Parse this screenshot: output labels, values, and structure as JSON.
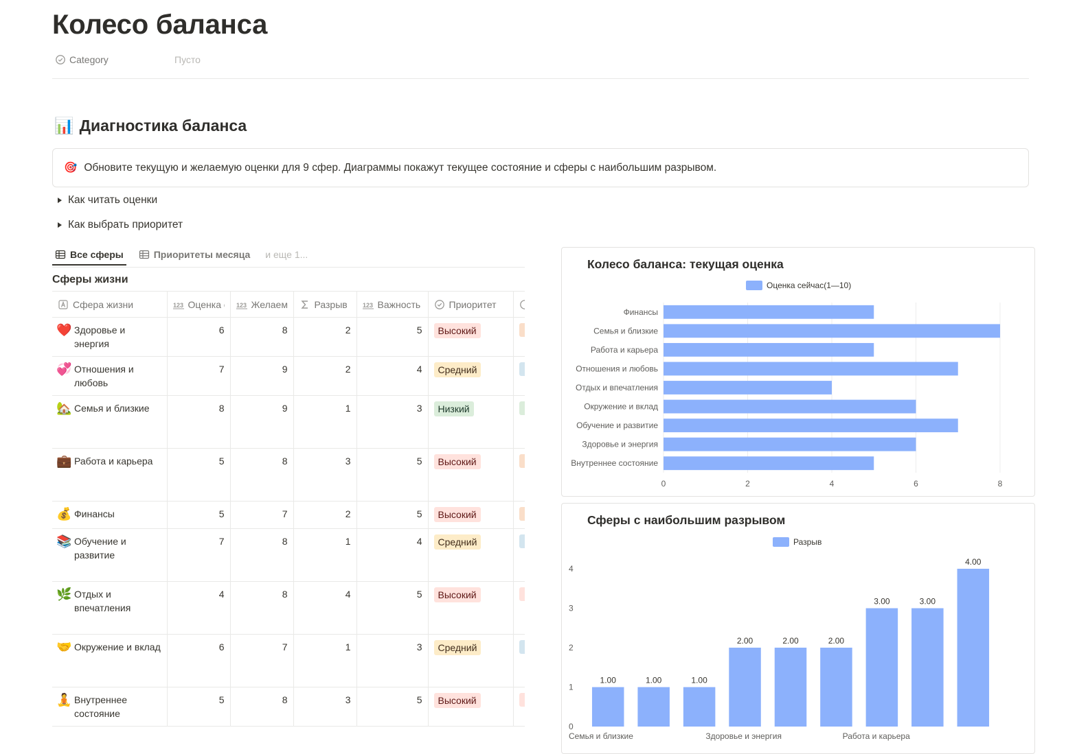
{
  "page": {
    "title": "Колесо баланса"
  },
  "property": {
    "name": "Category",
    "value": "Пусто"
  },
  "section": {
    "emoji": "📊",
    "heading": "Диагностика баланса"
  },
  "callout": {
    "emoji": "🎯",
    "text": "Обновите текущую и желаемую оценки для 9 сфер. Диаграммы покажут текущее состояние и сферы с наибольшим разрывом."
  },
  "toggles": [
    "Как читать оценки",
    "Как выбрать приоритет"
  ],
  "views": {
    "tabs": [
      "Все сферы",
      "Приоритеты месяца"
    ],
    "more": "и еще 1..."
  },
  "database": {
    "title": "Сферы жизни",
    "columns": [
      "Сфера жизни",
      "Оценка сейчас",
      "Желаемая",
      "Разрыв",
      "Важность",
      "Приоритет"
    ],
    "rows": [
      {
        "emoji": "❤️",
        "name": "Здоровье и энергия",
        "current": "6",
        "desired": "8",
        "gap": "2",
        "importance": "5",
        "priority": "Высокий",
        "level": "high",
        "stub": "#fadec9"
      },
      {
        "emoji": "💞",
        "name": "Отношения и любовь",
        "current": "7",
        "desired": "9",
        "gap": "2",
        "importance": "4",
        "priority": "Средний",
        "level": "mid",
        "stub": "#d3e5ef"
      },
      {
        "emoji": "🏡",
        "name": "Семья и близкие",
        "current": "8",
        "desired": "9",
        "gap": "1",
        "importance": "3",
        "priority": "Низкий",
        "level": "low",
        "stub": "#dbeddb"
      },
      {
        "emoji": "💼",
        "name": "Работа и карьера",
        "current": "5",
        "desired": "8",
        "gap": "3",
        "importance": "5",
        "priority": "Высокий",
        "level": "high",
        "stub": "#fadec9"
      },
      {
        "emoji": "💰",
        "name": "Финансы",
        "current": "5",
        "desired": "7",
        "gap": "2",
        "importance": "5",
        "priority": "Высокий",
        "level": "high",
        "stub": "#fadec9"
      },
      {
        "emoji": "📚",
        "name": "Обучение и развитие",
        "current": "7",
        "desired": "8",
        "gap": "1",
        "importance": "4",
        "priority": "Средний",
        "level": "mid",
        "stub": "#d3e5ef"
      },
      {
        "emoji": "🌿",
        "name": "Отдых и впечатления",
        "current": "4",
        "desired": "8",
        "gap": "4",
        "importance": "5",
        "priority": "Высокий",
        "level": "high",
        "stub": "#ffe2dd"
      },
      {
        "emoji": "🤝",
        "name": "Окружение и вклад",
        "current": "6",
        "desired": "7",
        "gap": "1",
        "importance": "3",
        "priority": "Средний",
        "level": "mid",
        "stub": "#d3e5ef"
      },
      {
        "emoji": "🧘",
        "name": "Внутреннее состояние",
        "current": "5",
        "desired": "8",
        "gap": "3",
        "importance": "5",
        "priority": "Высокий",
        "level": "high",
        "stub": "#ffe2dd"
      }
    ]
  },
  "colors": {
    "bar": "#8cb1fc",
    "grid": "#ececec"
  },
  "chart_data": [
    {
      "type": "bar",
      "orientation": "horizontal",
      "title": "Колесо баланса: текущая оценка",
      "categories": [
        "Финансы",
        "Семья и близкие",
        "Работа и карьера",
        "Отношения и любовь",
        "Отдых и впечатления",
        "Окружение и вклад",
        "Обучение и развитие",
        "Здоровье и энергия",
        "Внутреннее состояние"
      ],
      "series": [
        {
          "name": "Оценка сейчас(1—10)",
          "values": [
            5,
            8,
            5,
            7,
            4,
            6,
            7,
            6,
            5
          ]
        }
      ],
      "xlim": [
        0,
        8
      ],
      "xticks": [
        0,
        2,
        4,
        6,
        8
      ],
      "grid": true,
      "legend": "top"
    },
    {
      "type": "bar",
      "orientation": "vertical",
      "title": "Сферы с наибольшим разрывом",
      "categories": [
        "Семья и близкие",
        "",
        "",
        "Здоровье и энергия",
        "",
        "",
        "Работа и карьера",
        "",
        ""
      ],
      "series": [
        {
          "name": "Разрыв",
          "values": [
            1,
            1,
            1,
            2,
            2,
            2,
            3,
            3,
            4
          ]
        }
      ],
      "data_labels": [
        "1.00",
        "1.00",
        "1.00",
        "2.00",
        "2.00",
        "2.00",
        "3.00",
        "3.00",
        "4.00"
      ],
      "ylim": [
        0,
        4
      ],
      "yticks": [
        0,
        1,
        2,
        3,
        4
      ],
      "grid": false,
      "legend": "top"
    }
  ]
}
